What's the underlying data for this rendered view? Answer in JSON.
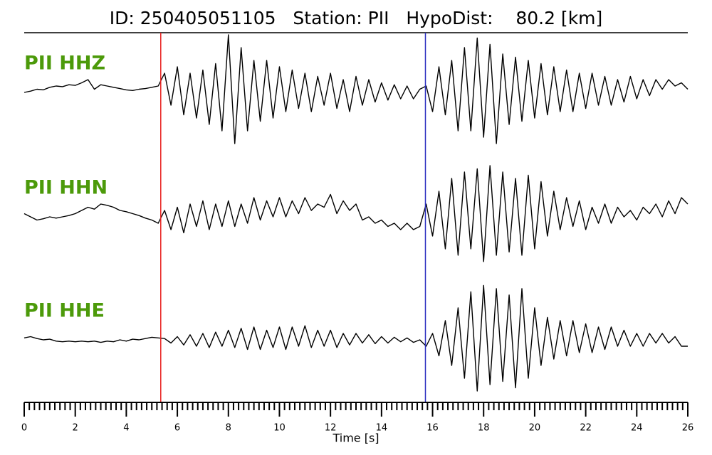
{
  "chart_data": {
    "type": "line",
    "title": "ID: 250405051105   Station: PII   HypoDist:    80.2 [km]",
    "xlabel": "Time [s]",
    "xlim": [
      0,
      26
    ],
    "xticks": [
      0,
      2,
      4,
      6,
      8,
      10,
      12,
      14,
      16,
      18,
      20,
      22,
      24,
      26
    ],
    "minor_ticks_per_major": 10,
    "ylim": [
      -1,
      1
    ],
    "label_color": "#4c9a0a",
    "picks": [
      {
        "time": 5.35,
        "color": "#e8211f"
      },
      {
        "time": 15.72,
        "color": "#2a2fc0"
      }
    ],
    "x": [
      0,
      0.25,
      0.5,
      0.75,
      1,
      1.25,
      1.5,
      1.75,
      2,
      2.25,
      2.5,
      2.75,
      3,
      3.25,
      3.5,
      3.75,
      4,
      4.25,
      4.5,
      4.75,
      5,
      5.25,
      5.5,
      5.75,
      6,
      6.25,
      6.5,
      6.75,
      7,
      7.25,
      7.5,
      7.75,
      8,
      8.25,
      8.5,
      8.75,
      9,
      9.25,
      9.5,
      9.75,
      10,
      10.25,
      10.5,
      10.75,
      11,
      11.25,
      11.5,
      11.75,
      12,
      12.25,
      12.5,
      12.75,
      13,
      13.25,
      13.5,
      13.75,
      14,
      14.25,
      14.5,
      14.75,
      15,
      15.25,
      15.5,
      15.75,
      16,
      16.25,
      16.5,
      16.75,
      17,
      17.25,
      17.5,
      17.75,
      18,
      18.25,
      18.5,
      18.75,
      19,
      19.25,
      19.5,
      19.75,
      20,
      20.25,
      20.5,
      20.75,
      21,
      21.25,
      21.5,
      21.75,
      22,
      22.25,
      22.5,
      22.75,
      23,
      23.25,
      23.5,
      23.75,
      24,
      24.25,
      24.5,
      24.75,
      25,
      25.25,
      25.5,
      25.75,
      26
    ],
    "series": [
      {
        "name": "PII HHZ",
        "color": "#000000",
        "values": [
          0,
          0.02,
          0.05,
          0.04,
          0.08,
          0.1,
          0.09,
          0.12,
          0.11,
          0.15,
          0.2,
          0.05,
          0.12,
          0.1,
          0.08,
          0.06,
          0.04,
          0.03,
          0.05,
          0.06,
          0.08,
          0.1,
          0.3,
          -0.2,
          0.4,
          -0.35,
          0.3,
          -0.4,
          0.35,
          -0.5,
          0.45,
          -0.6,
          0.9,
          -0.8,
          0.7,
          -0.6,
          0.5,
          -0.45,
          0.5,
          -0.4,
          0.4,
          -0.3,
          0.35,
          -0.25,
          0.3,
          -0.3,
          0.25,
          -0.2,
          0.3,
          -0.25,
          0.2,
          -0.3,
          0.25,
          -0.2,
          0.2,
          -0.15,
          0.15,
          -0.12,
          0.12,
          -0.1,
          0.1,
          -0.1,
          0.05,
          0.1,
          -0.3,
          0.4,
          -0.35,
          0.5,
          -0.6,
          0.7,
          -0.6,
          0.85,
          -0.7,
          0.75,
          -0.8,
          0.6,
          -0.5,
          0.55,
          -0.45,
          0.5,
          -0.4,
          0.45,
          -0.35,
          0.4,
          -0.3,
          0.35,
          -0.3,
          0.3,
          -0.25,
          0.3,
          -0.2,
          0.25,
          -0.2,
          0.2,
          -0.15,
          0.25,
          -0.1,
          0.2,
          -0.05,
          0.2,
          0.05,
          0.2,
          0.1,
          0.15,
          0.05
        ]
      },
      {
        "name": "PII HHN",
        "color": "#000000",
        "values": [
          0.05,
          0,
          -0.05,
          -0.03,
          0,
          -0.02,
          0,
          0.02,
          0.05,
          0.1,
          0.15,
          0.12,
          0.2,
          0.18,
          0.15,
          0.1,
          0.08,
          0.05,
          0.02,
          -0.02,
          -0.05,
          -0.1,
          0.1,
          -0.2,
          0.15,
          -0.25,
          0.2,
          -0.15,
          0.25,
          -0.2,
          0.2,
          -0.15,
          0.25,
          -0.15,
          0.2,
          -0.1,
          0.3,
          -0.05,
          0.25,
          0,
          0.3,
          0,
          0.25,
          0.05,
          0.3,
          0.1,
          0.2,
          0.15,
          0.35,
          0.05,
          0.25,
          0.1,
          0.2,
          -0.05,
          0,
          -0.1,
          -0.05,
          -0.15,
          -0.1,
          -0.2,
          -0.1,
          -0.2,
          -0.15,
          0.2,
          -0.3,
          0.4,
          -0.5,
          0.6,
          -0.6,
          0.7,
          -0.5,
          0.75,
          -0.7,
          0.8,
          -0.6,
          0.7,
          -0.55,
          0.6,
          -0.6,
          0.65,
          -0.5,
          0.55,
          -0.3,
          0.4,
          -0.2,
          0.3,
          -0.15,
          0.25,
          -0.2,
          0.15,
          -0.1,
          0.2,
          -0.1,
          0.15,
          0,
          0.1,
          -0.05,
          0.15,
          0.05,
          0.2,
          0,
          0.25,
          0.05,
          0.3,
          0.2
        ]
      },
      {
        "name": "PII HHE",
        "color": "#000000",
        "values": [
          0.03,
          0.05,
          0.02,
          0,
          0.01,
          -0.02,
          -0.03,
          -0.02,
          -0.03,
          -0.02,
          -0.03,
          -0.02,
          -0.04,
          -0.02,
          -0.03,
          0,
          -0.02,
          0.01,
          0,
          0.02,
          0.04,
          0.03,
          0.02,
          -0.05,
          0.05,
          -0.08,
          0.08,
          -0.1,
          0.1,
          -0.12,
          0.12,
          -0.1,
          0.15,
          -0.12,
          0.18,
          -0.15,
          0.2,
          -0.15,
          0.15,
          -0.12,
          0.2,
          -0.15,
          0.2,
          -0.1,
          0.22,
          -0.12,
          0.15,
          -0.1,
          0.15,
          -0.12,
          0.1,
          -0.08,
          0.1,
          -0.05,
          0.08,
          -0.06,
          0.05,
          -0.05,
          0.04,
          -0.03,
          0.03,
          -0.04,
          0,
          -0.1,
          0.1,
          -0.25,
          0.3,
          -0.4,
          0.5,
          -0.6,
          0.75,
          -0.8,
          0.85,
          -0.7,
          0.8,
          -0.65,
          0.7,
          -0.75,
          0.8,
          -0.6,
          0.5,
          -0.4,
          0.35,
          -0.3,
          0.3,
          -0.25,
          0.3,
          -0.2,
          0.25,
          -0.2,
          0.2,
          -0.15,
          0.2,
          -0.1,
          0.15,
          -0.1,
          0.1,
          -0.1,
          0.1,
          -0.05,
          0.1,
          -0.05,
          0.05,
          -0.1,
          -0.1
        ]
      }
    ]
  }
}
